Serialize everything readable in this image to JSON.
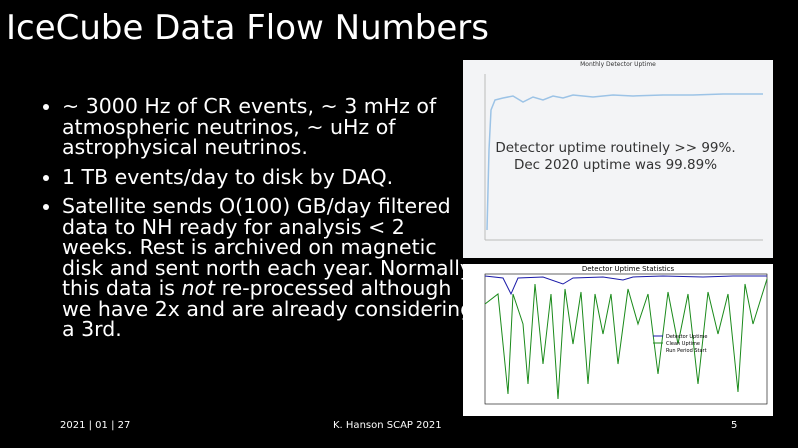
{
  "header": {
    "title": "IceCube Data Flow Numbers"
  },
  "bullets": [
    {
      "text": "~ 3000 Hz of CR events, ~ 3 mHz of atmospheric neutrinos, ~ uHz of astrophysical neutrinos."
    },
    {
      "text": "1 TB events/day to disk by DAQ."
    },
    {
      "text": "Satellite sends O(100) GB/day filtered data to NH ready for analysis < 2 weeks. Rest is archived on magnetic disk and sent north each year. Normally this data is ",
      "emphasis": "not",
      "after": " re-processed although we have 2x and are already considering a 3rd."
    }
  ],
  "figures": [
    {
      "title": "Monthly Detector Uptime",
      "caption": "Detector uptime routinely >> 99%. Dec 2020 uptime was 99.89%"
    },
    {
      "title": "Detector Uptime Statistics",
      "legend": [
        "Detector Uptime",
        "Clean Uptime",
        "Run Period Start"
      ]
    }
  ],
  "footer": {
    "date": "2021 | 01 | 27",
    "author": "K. Hanson SCAP 2021",
    "page": "5"
  }
}
